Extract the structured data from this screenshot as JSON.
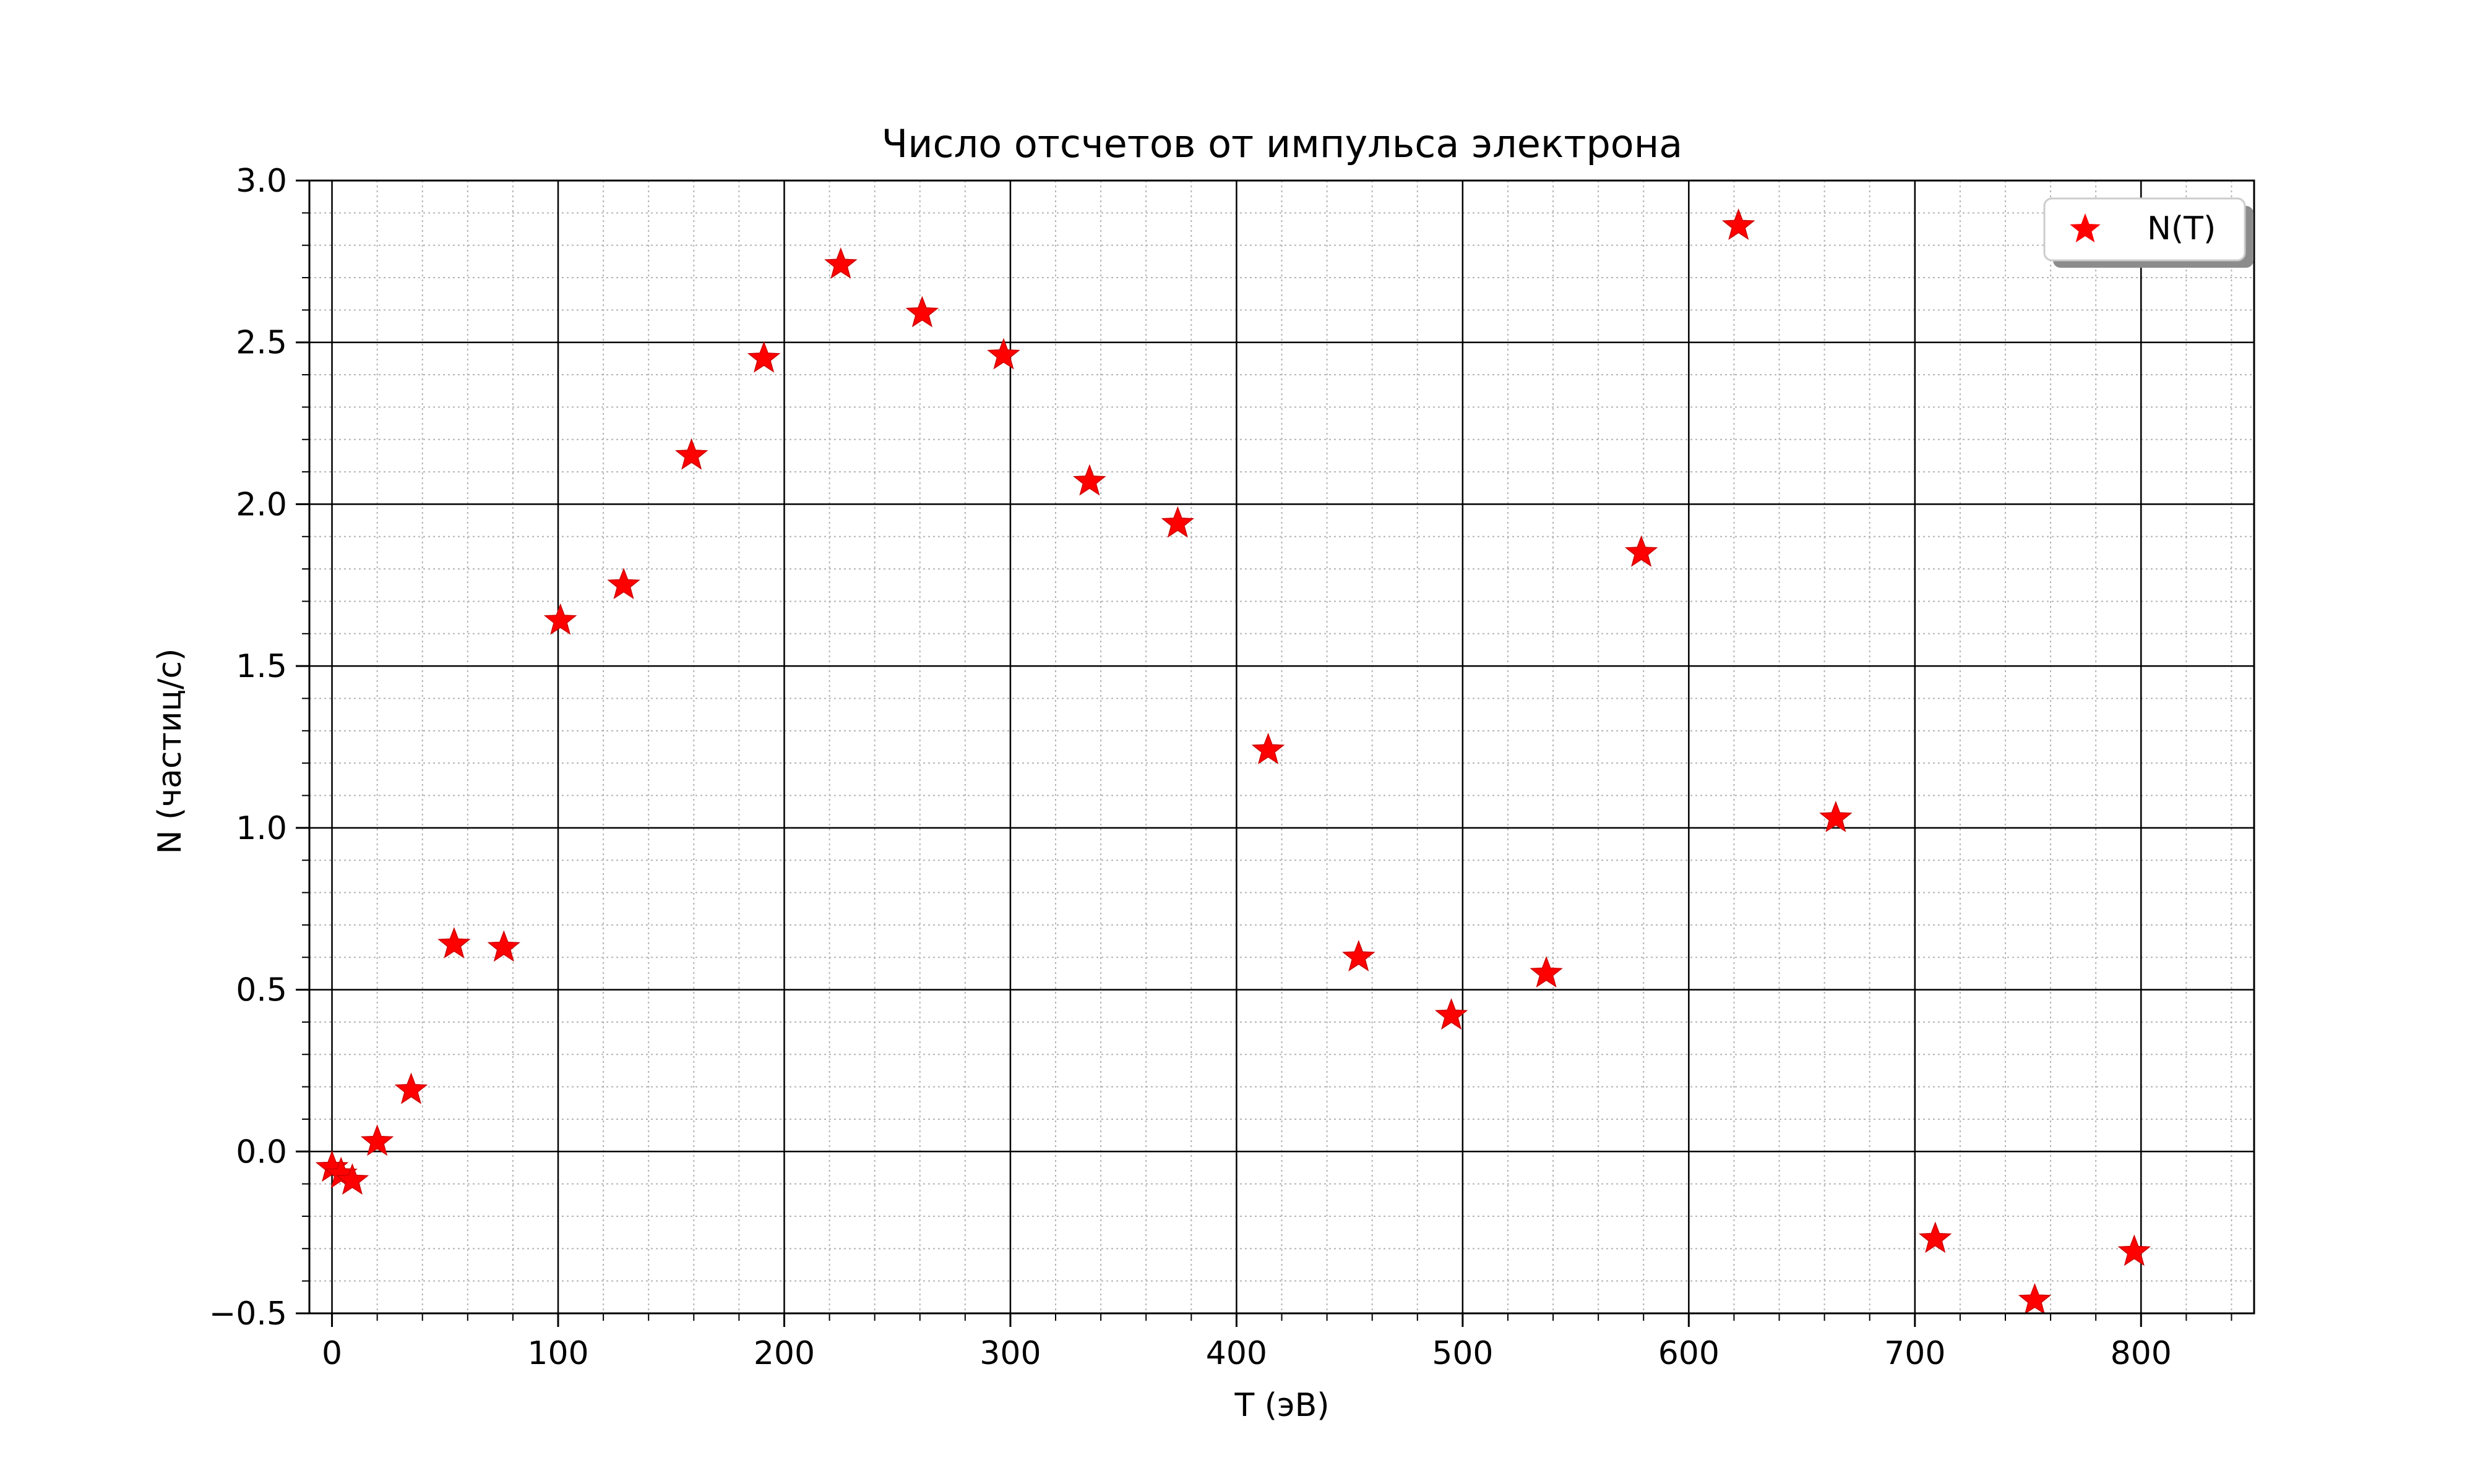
{
  "chart_data": {
    "type": "scatter",
    "title": "Число отсчетов от импульса электрона",
    "xlabel": "T (эВ)",
    "ylabel": "N (частиц/с)",
    "xlim": [
      -10,
      850
    ],
    "ylim": [
      -0.5,
      3.0
    ],
    "x_ticks": [
      0,
      100,
      200,
      300,
      400,
      500,
      600,
      700,
      800
    ],
    "x_tick_labels": [
      "0",
      "100",
      "200",
      "300",
      "400",
      "500",
      "600",
      "700",
      "800"
    ],
    "y_ticks": [
      -0.5,
      0.0,
      0.5,
      1.0,
      1.5,
      2.0,
      2.5,
      3.0
    ],
    "y_tick_labels": [
      "−0.5",
      "0.0",
      "0.5",
      "1.0",
      "1.5",
      "2.0",
      "2.5",
      "3.0"
    ],
    "grid": true,
    "minor_grid": true,
    "legend_position": "top-right",
    "marker": "star",
    "series": [
      {
        "name": "N(T)",
        "color": "#ff0000",
        "points": [
          {
            "x": 0,
            "y": -0.05
          },
          {
            "x": 4,
            "y": -0.07
          },
          {
            "x": 9,
            "y": -0.09
          },
          {
            "x": 20,
            "y": 0.03
          },
          {
            "x": 35,
            "y": 0.19
          },
          {
            "x": 54,
            "y": 0.64
          },
          {
            "x": 76,
            "y": 0.63
          },
          {
            "x": 101,
            "y": 1.64
          },
          {
            "x": 129,
            "y": 1.75
          },
          {
            "x": 159,
            "y": 2.15
          },
          {
            "x": 191,
            "y": 2.45
          },
          {
            "x": 225,
            "y": 2.74
          },
          {
            "x": 261,
            "y": 2.59
          },
          {
            "x": 297,
            "y": 2.46
          },
          {
            "x": 335,
            "y": 2.07
          },
          {
            "x": 374,
            "y": 1.94
          },
          {
            "x": 414,
            "y": 1.24
          },
          {
            "x": 454,
            "y": 0.6
          },
          {
            "x": 495,
            "y": 0.42
          },
          {
            "x": 537,
            "y": 0.55
          },
          {
            "x": 579,
            "y": 1.85
          },
          {
            "x": 622,
            "y": 2.86
          },
          {
            "x": 665,
            "y": 1.03
          },
          {
            "x": 709,
            "y": -0.27
          },
          {
            "x": 753,
            "y": -0.46
          },
          {
            "x": 797,
            "y": -0.31
          }
        ]
      }
    ]
  }
}
